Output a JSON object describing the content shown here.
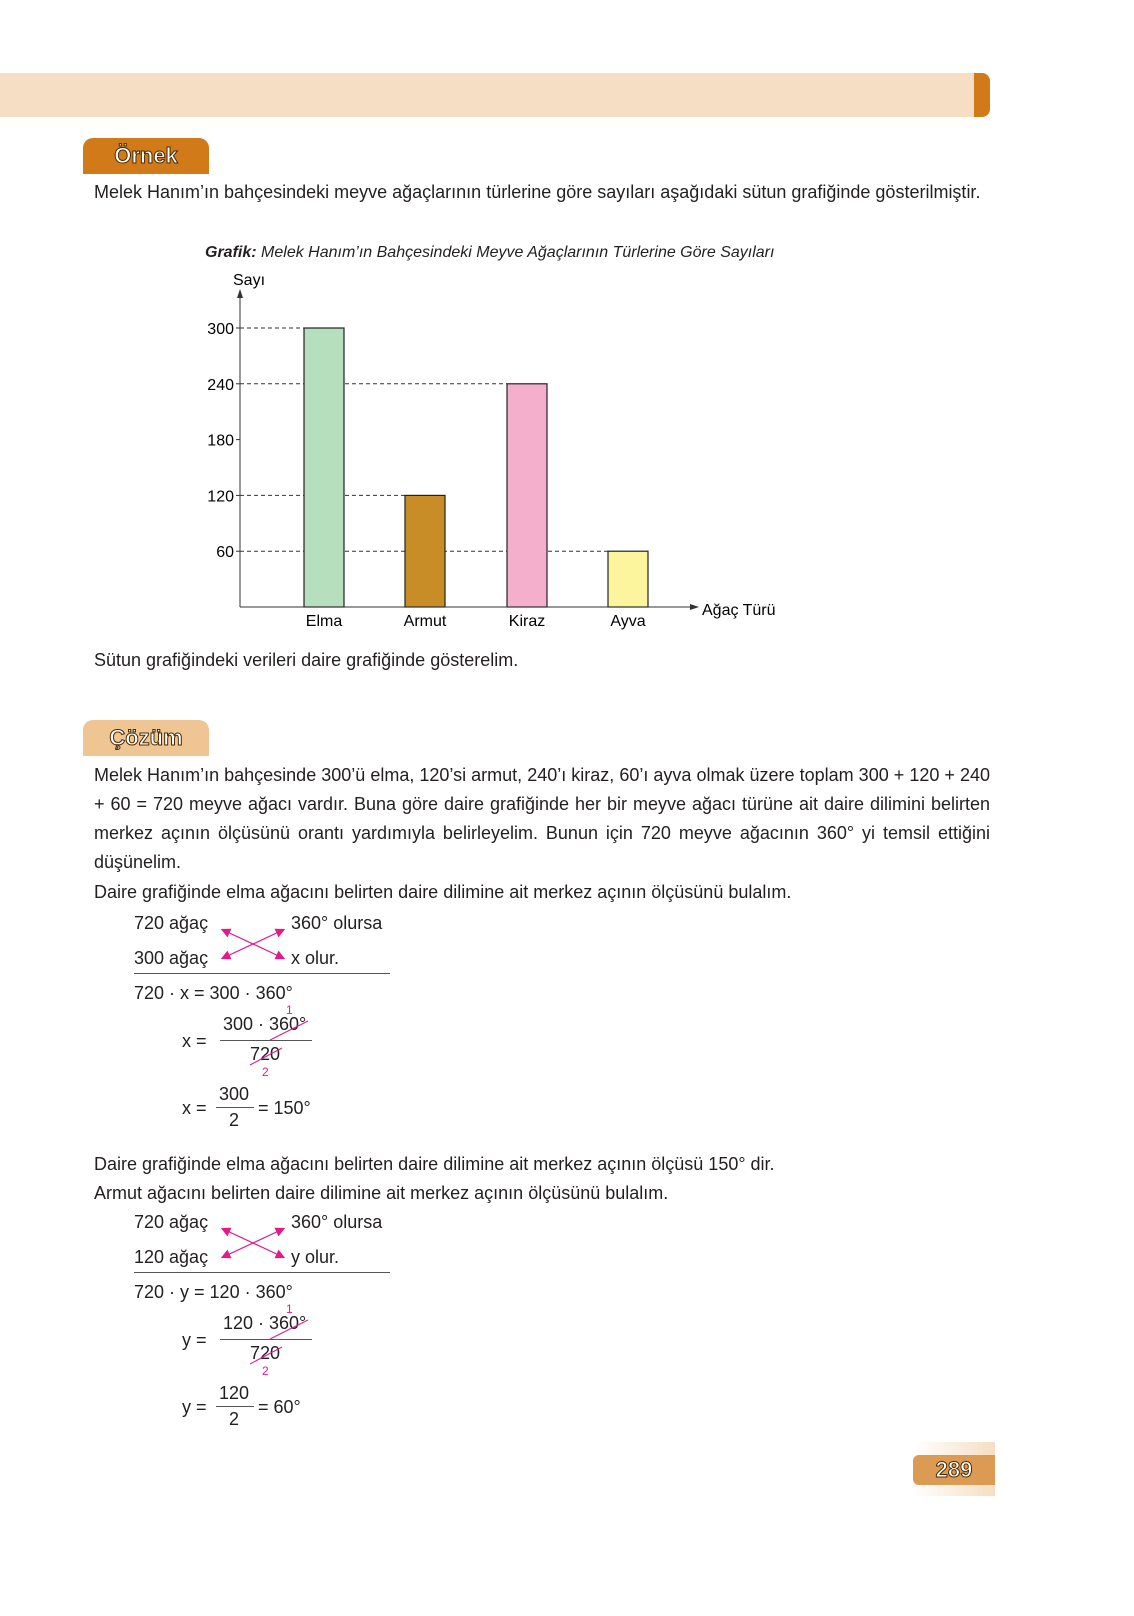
{
  "header": {
    "band_color": "#f5dec3",
    "accent_color": "#d07a1a"
  },
  "example": {
    "tag": "Örnek",
    "intro": "Melek Hanım’ın bahçesindeki meyve ağaçlarının türlerine göre sayıları aşağıdaki sütun grafiğinde gösterilmiştir.",
    "closing": "Sütun grafiğindeki verileri daire grafiğinde gösterelim."
  },
  "chart_data": {
    "type": "bar",
    "title_prefix": "Grafik:",
    "title": "Melek Hanım’ın Bahçesindeki Meyve Ağaçlarının Türlerine Göre Sayıları",
    "ylabel": "Sayı",
    "xlabel": "Ağaç Türü",
    "categories": [
      "Elma",
      "Armut",
      "Kiraz",
      "Ayva"
    ],
    "values": [
      300,
      120,
      240,
      60
    ],
    "colors": [
      "#b5dfbd",
      "#c98d28",
      "#f4afcc",
      "#fcf59d"
    ],
    "yticks": [
      60,
      120,
      180,
      240,
      300
    ],
    "ylim": [
      0,
      300
    ],
    "grid": "dashed reference lines at bar tops"
  },
  "solution": {
    "tag": "Çözüm",
    "p1": "Melek Hanım’ın bahçesinde 300’ü elma, 120’si armut, 240’ı kiraz, 60’ı ayva olmak üzere toplam 300 + 120 + 240 + 60 = 720 meyve ağacı vardır. Buna göre daire grafiğinde her bir meyve ağacı türüne ait daire dilimini belirten merkez açının ölçüsünü orantı yardımıyla belirleyelim. Bunun için 720 meyve ağacının 360° yi temsil ettiğini düşünelim.",
    "p2": "Daire grafiğinde elma ağacını belirten daire dilimine ait merkez açının ölçüsünü bulalım.",
    "m1": {
      "a": "720 ağaç",
      "b": "360° olursa",
      "c": "300 ağaç",
      "d": "x  olur.",
      "eq1": "720 · x = 300 · 360°",
      "var": "x =",
      "num": "300 · 360°",
      "den": "720",
      "c1": "1",
      "c2": "2",
      "num2": "300",
      "den2": "2",
      "res": "= 150°"
    },
    "p3": "Daire grafiğinde elma ağacını belirten daire dilimine ait merkez açının ölçüsü 150° dir.",
    "p4": "Armut ağacını belirten daire dilimine ait merkez açının ölçüsünü bulalım.",
    "m2": {
      "a": "720 ağaç",
      "b": "360° olursa",
      "c": "120 ağaç",
      "d": "y  olur.",
      "eq1": "720 · y = 120 · 360°",
      "var": "y =",
      "num": "120 · 360°",
      "den": "720",
      "c1": "1",
      "c2": "2",
      "num2": "120",
      "den2": "2",
      "res": "= 60°"
    }
  },
  "page_number": "289"
}
